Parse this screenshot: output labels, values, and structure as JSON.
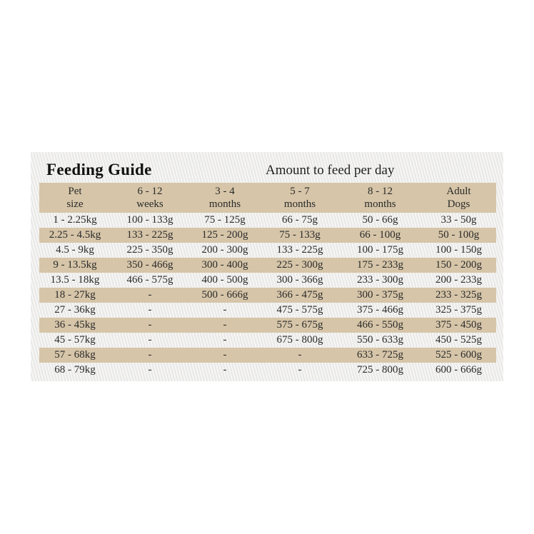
{
  "title": "Feeding Guide",
  "subtitle": "Amount to feed per day",
  "columns": [
    [
      "Pet",
      "size"
    ],
    [
      "6 - 12",
      "weeks"
    ],
    [
      "3 - 4",
      "months"
    ],
    [
      "5 - 7",
      "months"
    ],
    [
      "8 - 12",
      "months"
    ],
    [
      "Adult",
      "Dogs"
    ]
  ],
  "rows": [
    [
      "1 - 2.25kg",
      "100 - 133g",
      "75 - 125g",
      "66 - 75g",
      "50 - 66g",
      "33 - 50g"
    ],
    [
      "2.25 - 4.5kg",
      "133 - 225g",
      "125 - 200g",
      "75 - 133g",
      "66 - 100g",
      "50 - 100g"
    ],
    [
      "4.5 - 9kg",
      "225 - 350g",
      "200 - 300g",
      "133 - 225g",
      "100 - 175g",
      "100 - 150g"
    ],
    [
      "9 - 13.5kg",
      "350 - 466g",
      "300 - 400g",
      "225 - 300g",
      "175 - 233g",
      "150 - 200g"
    ],
    [
      "13.5 - 18kg",
      "466 - 575g",
      "400 - 500g",
      "300 - 366g",
      "233 - 300g",
      "200 - 233g"
    ],
    [
      "18 - 27kg",
      "-",
      "500 - 666g",
      "366 - 475g",
      "300 - 375g",
      "233 - 325g"
    ],
    [
      "27 - 36kg",
      "-",
      "-",
      "475 - 575g",
      "375 - 466g",
      "325 - 375g"
    ],
    [
      "36 - 45kg",
      "-",
      "-",
      "575 - 675g",
      "466 - 550g",
      "375 - 450g"
    ],
    [
      "45 - 57kg",
      "-",
      "-",
      "675 - 800g",
      "550 - 633g",
      "450 - 525g"
    ],
    [
      "57 - 68kg",
      "-",
      "-",
      "-",
      "633 - 725g",
      "525 - 600g"
    ],
    [
      "68 - 79kg",
      "-",
      "-",
      "-",
      "725 - 800g",
      "600 - 666g"
    ]
  ],
  "colors": {
    "band": "#d6c5a8",
    "background": "#efeeec"
  }
}
